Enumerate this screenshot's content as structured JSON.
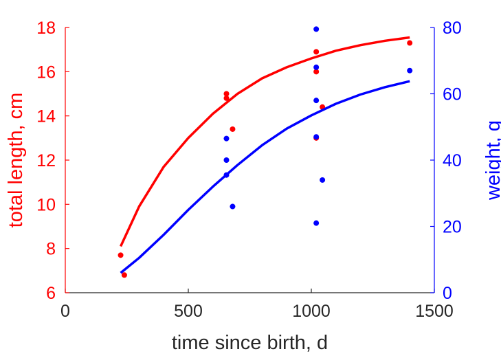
{
  "chart_data": {
    "type": "scatter",
    "xlabel": "time since birth, d",
    "ylabel_left": "total length, cm",
    "ylabel_right": "weight, g",
    "xlim": [
      0,
      1500
    ],
    "ylim_left": [
      6,
      18
    ],
    "ylim_right": [
      0,
      80
    ],
    "xticks": [
      0,
      500,
      1000,
      1500
    ],
    "yticks_left": [
      6,
      8,
      10,
      12,
      14,
      16,
      18
    ],
    "yticks_right": [
      0,
      20,
      40,
      60,
      80
    ],
    "colors": {
      "left": "#ff0000",
      "right": "#0000ff",
      "axis_x": "#262626"
    },
    "series": [
      {
        "axis": "left",
        "kind": "points",
        "color": "#ff0000",
        "points": [
          [
            225,
            7.7
          ],
          [
            240,
            6.8
          ],
          [
            655,
            15.0
          ],
          [
            655,
            14.8
          ],
          [
            680,
            13.4
          ],
          [
            1020,
            16.9
          ],
          [
            1020,
            16.0
          ],
          [
            1020,
            13.0
          ],
          [
            1045,
            14.4
          ],
          [
            1400,
            17.3
          ]
        ]
      },
      {
        "axis": "left",
        "kind": "line",
        "color": "#ff0000",
        "points": [
          [
            225,
            8.1
          ],
          [
            300,
            9.9
          ],
          [
            400,
            11.7
          ],
          [
            500,
            13.0
          ],
          [
            600,
            14.1
          ],
          [
            700,
            15.0
          ],
          [
            800,
            15.7
          ],
          [
            900,
            16.2
          ],
          [
            1000,
            16.6
          ],
          [
            1100,
            16.95
          ],
          [
            1200,
            17.2
          ],
          [
            1300,
            17.4
          ],
          [
            1400,
            17.55
          ]
        ]
      },
      {
        "axis": "right",
        "kind": "points",
        "color": "#0000ff",
        "points": [
          [
            655,
            46.5
          ],
          [
            655,
            40.0
          ],
          [
            655,
            35.5
          ],
          [
            680,
            26.0
          ],
          [
            1020,
            79.5
          ],
          [
            1020,
            68.0
          ],
          [
            1020,
            58.0
          ],
          [
            1020,
            47.0
          ],
          [
            1020,
            21.0
          ],
          [
            1045,
            34.0
          ],
          [
            1400,
            67.0
          ]
        ]
      },
      {
        "axis": "right",
        "kind": "line",
        "color": "#0000ff",
        "points": [
          [
            225,
            6.0
          ],
          [
            300,
            10.5
          ],
          [
            400,
            17.5
          ],
          [
            500,
            25.0
          ],
          [
            600,
            32.0
          ],
          [
            700,
            38.5
          ],
          [
            800,
            44.5
          ],
          [
            900,
            49.5
          ],
          [
            1000,
            53.5
          ],
          [
            1100,
            57.0
          ],
          [
            1200,
            59.8
          ],
          [
            1300,
            62.0
          ],
          [
            1400,
            63.8
          ]
        ]
      }
    ]
  }
}
